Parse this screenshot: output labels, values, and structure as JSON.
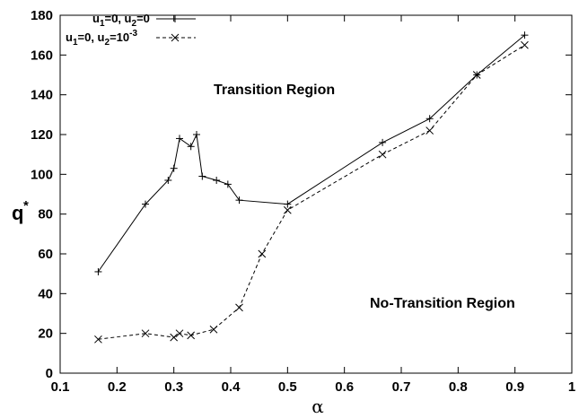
{
  "chart_data": {
    "type": "line",
    "xlabel": "α",
    "ylabel": "q",
    "ylabel_superscript": "*",
    "xlim": [
      0.1,
      1.0
    ],
    "ylim": [
      0,
      180
    ],
    "xticks": [
      "0.1",
      "0.2",
      "0.3",
      "0.4",
      "0.5",
      "0.6",
      "0.7",
      "0.8",
      "0.9",
      "1"
    ],
    "yticks": [
      "0",
      "20",
      "40",
      "60",
      "80",
      "100",
      "120",
      "140",
      "160",
      "180"
    ],
    "grid": false,
    "legend_position": "top-left",
    "annotations": [
      "Transition Region",
      "No-Transition Region"
    ],
    "series": [
      {
        "legend": {
          "a": "u",
          "b": "1",
          "c": "=0, u",
          "d": "2",
          "e": "=0"
        },
        "marker": "plus",
        "line": "solid",
        "color": "#000000",
        "x": [
          0.167,
          0.25,
          0.29,
          0.3,
          0.31,
          0.33,
          0.34,
          0.35,
          0.375,
          0.395,
          0.415,
          0.5,
          0.667,
          0.75,
          0.833,
          0.917
        ],
        "y": [
          51,
          85,
          97,
          103,
          118,
          114,
          120,
          99,
          97,
          95,
          87,
          85,
          116,
          128,
          150,
          170
        ]
      },
      {
        "legend": {
          "a": "u",
          "b": "1",
          "c": "=0, u",
          "d": "2",
          "e": "=10",
          "f": "-3"
        },
        "marker": "x",
        "line": "dashed",
        "color": "#000000",
        "x": [
          0.167,
          0.25,
          0.3,
          0.31,
          0.33,
          0.37,
          0.415,
          0.455,
          0.5,
          0.667,
          0.75,
          0.833,
          0.917
        ],
        "y": [
          17,
          20,
          18,
          20,
          19,
          22,
          33,
          60,
          82,
          110,
          122,
          150,
          165
        ]
      }
    ]
  }
}
